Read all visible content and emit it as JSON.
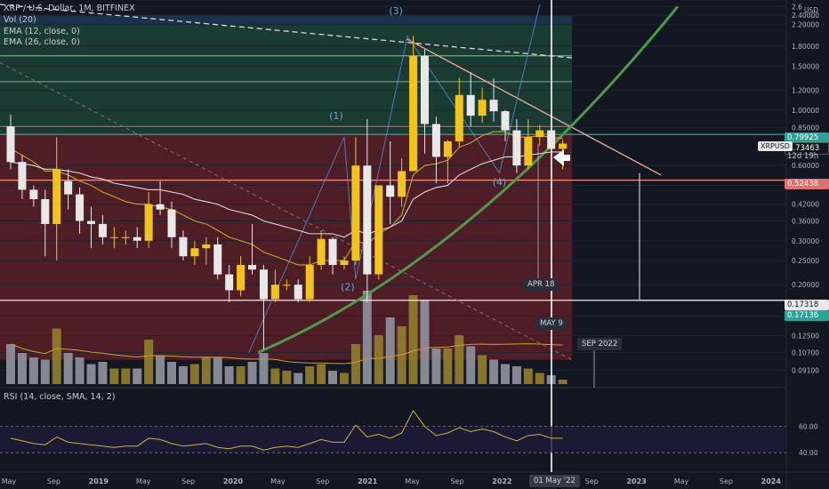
{
  "header": {
    "symbol_line": "XRP / U.S. Dollar, 1M, BITFINEX",
    "indicator_vol": "Vol (20)",
    "indicator_ema12": "EMA (12, close, 0)",
    "indicator_ema26": "EMA (26, close, 0)"
  },
  "rsi_panel": {
    "label": "RSI (14, close, SMA, 14, 2)",
    "levels": [
      "60.00",
      "40.00"
    ]
  },
  "price_axis": {
    "currency": "USD",
    "ticks": [
      "2.6",
      "2.40000",
      "2.20000",
      "1.80000",
      "1.50000",
      "1.20000",
      "1.00000",
      "0.85000",
      "0.60000",
      "0.50000",
      "0.42000",
      "0.36000",
      "0.30000",
      "0.25000",
      "0.20000",
      "0.15000",
      "0.12500",
      "0.10700",
      "0.09100"
    ]
  },
  "price_tags": {
    "symbol": "XRPUSD",
    "current_price": "0.73463",
    "countdown": "12d 19h",
    "level_green": "0.79925",
    "level_red": "0.52438",
    "level_white": "0.17318",
    "level_low": "0.17136"
  },
  "wave_labels": [
    "(1)",
    "(2)",
    "(3)",
    "(4)"
  ],
  "time_markers": {
    "apr": "APR 18",
    "may": "MAY 9",
    "sep": "SEP 2022",
    "cursor": "01 May '22"
  },
  "time_axis": [
    "May",
    "Sep",
    "2019",
    "May",
    "Sep",
    "2020",
    "May",
    "Sep",
    "2021",
    "May",
    "Sep",
    "2022",
    "May",
    "Sep",
    "2023",
    "May",
    "Sep",
    "2024"
  ],
  "colors": {
    "background": "#131722",
    "bull_candle": "#f0c419",
    "bear_candle": "#e8e8e8",
    "ema_fast": "#c9a227",
    "ema_slow": "#d8d8d8",
    "curve": "#4c9a4c",
    "resistance_line": "#f4a9a0",
    "red_zone": "#5a1f26",
    "green_zone": "#1f4a3a"
  },
  "chart_data": {
    "type": "candlestick",
    "title": "XRP / U.S. Dollar, 1M, BITFINEX",
    "x_start": "2018-05",
    "periods": [
      "2018-05",
      "2018-06",
      "2018-07",
      "2018-08",
      "2018-09",
      "2018-10",
      "2018-11",
      "2018-12",
      "2019-01",
      "2019-02",
      "2019-03",
      "2019-04",
      "2019-05",
      "2019-06",
      "2019-07",
      "2019-08",
      "2019-09",
      "2019-10",
      "2019-11",
      "2019-12",
      "2020-01",
      "2020-02",
      "2020-03",
      "2020-04",
      "2020-05",
      "2020-06",
      "2020-07",
      "2020-08",
      "2020-09",
      "2020-10",
      "2020-11",
      "2020-12",
      "2021-01",
      "2021-02",
      "2021-03",
      "2021-04",
      "2021-05",
      "2021-06",
      "2021-07",
      "2021-08",
      "2021-09",
      "2021-10",
      "2021-11",
      "2021-12",
      "2022-01",
      "2022-02",
      "2022-03",
      "2022-04",
      "2022-05"
    ],
    "open": [
      0.86,
      0.62,
      0.48,
      0.44,
      0.35,
      0.52,
      0.46,
      0.36,
      0.35,
      0.31,
      0.31,
      0.31,
      0.3,
      0.42,
      0.4,
      0.31,
      0.26,
      0.28,
      0.29,
      0.22,
      0.19,
      0.24,
      0.23,
      0.175,
      0.2,
      0.2,
      0.175,
      0.24,
      0.305,
      0.24,
      0.25,
      0.6,
      0.22,
      0.5,
      0.45,
      0.57,
      1.65,
      0.88,
      0.65,
      0.75,
      1.15,
      0.95,
      1.1,
      0.99,
      0.83,
      0.6,
      0.78,
      0.83,
      0.7
    ],
    "high": [
      0.96,
      0.66,
      0.5,
      0.48,
      0.78,
      0.58,
      0.49,
      0.41,
      0.38,
      0.34,
      0.33,
      0.34,
      0.47,
      0.52,
      0.43,
      0.33,
      0.3,
      0.31,
      0.31,
      0.24,
      0.26,
      0.35,
      0.24,
      0.23,
      0.21,
      0.21,
      0.26,
      0.33,
      0.31,
      0.26,
      0.78,
      0.92,
      0.49,
      0.75,
      0.64,
      1.98,
      1.75,
      0.94,
      0.76,
      1.35,
      1.42,
      1.23,
      1.34,
      1.0,
      0.92,
      0.92,
      0.87,
      0.85,
      0.76
    ],
    "low": [
      0.58,
      0.44,
      0.41,
      0.26,
      0.25,
      0.4,
      0.32,
      0.28,
      0.29,
      0.28,
      0.29,
      0.28,
      0.28,
      0.38,
      0.28,
      0.25,
      0.24,
      0.24,
      0.21,
      0.17,
      0.18,
      0.22,
      0.11,
      0.17,
      0.19,
      0.17,
      0.17,
      0.23,
      0.22,
      0.23,
      0.24,
      0.17,
      0.21,
      0.35,
      0.41,
      0.57,
      0.67,
      0.51,
      0.51,
      0.71,
      0.86,
      0.89,
      0.9,
      0.75,
      0.56,
      0.58,
      0.72,
      0.6,
      0.58
    ],
    "close": [
      0.62,
      0.48,
      0.44,
      0.35,
      0.58,
      0.46,
      0.36,
      0.35,
      0.31,
      0.31,
      0.31,
      0.3,
      0.42,
      0.4,
      0.31,
      0.26,
      0.28,
      0.29,
      0.22,
      0.19,
      0.24,
      0.23,
      0.175,
      0.2,
      0.2,
      0.175,
      0.24,
      0.305,
      0.24,
      0.25,
      0.6,
      0.22,
      0.5,
      0.45,
      0.57,
      1.65,
      0.88,
      0.65,
      0.75,
      1.15,
      0.95,
      1.1,
      0.99,
      0.83,
      0.6,
      0.78,
      0.83,
      0.7,
      0.73463
    ],
    "volume": [
      18,
      14,
      12,
      11,
      25,
      14,
      12,
      9,
      10,
      7,
      7,
      7,
      20,
      13,
      10,
      8,
      9,
      12,
      12,
      8,
      8,
      10,
      14,
      7,
      6,
      5,
      8,
      9,
      6,
      5,
      18,
      42,
      22,
      30,
      26,
      40,
      38,
      16,
      16,
      22,
      17,
      13,
      11,
      9,
      8,
      7,
      5,
      4,
      2
    ],
    "ema12": [
      0.7,
      0.66,
      0.62,
      0.57,
      0.57,
      0.55,
      0.52,
      0.5,
      0.47,
      0.45,
      0.43,
      0.42,
      0.42,
      0.41,
      0.4,
      0.38,
      0.36,
      0.35,
      0.33,
      0.31,
      0.3,
      0.29,
      0.27,
      0.26,
      0.25,
      0.24,
      0.24,
      0.25,
      0.25,
      0.25,
      0.3,
      0.29,
      0.32,
      0.34,
      0.38,
      0.55,
      0.6,
      0.61,
      0.63,
      0.71,
      0.74,
      0.79,
      0.82,
      0.82,
      0.78,
      0.78,
      0.79,
      0.78,
      0.77
    ],
    "ema26": [
      0.62,
      0.61,
      0.6,
      0.58,
      0.58,
      0.57,
      0.56,
      0.54,
      0.53,
      0.51,
      0.5,
      0.49,
      0.48,
      0.48,
      0.47,
      0.46,
      0.44,
      0.43,
      0.42,
      0.4,
      0.39,
      0.38,
      0.36,
      0.35,
      0.34,
      0.33,
      0.32,
      0.32,
      0.32,
      0.31,
      0.33,
      0.32,
      0.33,
      0.34,
      0.36,
      0.44,
      0.47,
      0.49,
      0.5,
      0.55,
      0.58,
      0.61,
      0.63,
      0.65,
      0.65,
      0.66,
      0.67,
      0.68,
      0.68
    ],
    "rsi": [
      51,
      49,
      47,
      46,
      52,
      48,
      47,
      46,
      45,
      44,
      45,
      45,
      51,
      50,
      47,
      45,
      46,
      47,
      44,
      43,
      45,
      45,
      42,
      44,
      45,
      44,
      47,
      50,
      48,
      48,
      61,
      52,
      54,
      51,
      55,
      72,
      60,
      53,
      55,
      59,
      56,
      58,
      56,
      52,
      49,
      53,
      54,
      51,
      51
    ],
    "levels": {
      "green": 0.79925,
      "red": 0.52438,
      "white": 0.17318,
      "low": 0.17136
    },
    "rsi_levels": [
      60,
      40
    ],
    "y_scale": "log",
    "ylim": [
      0.08,
      2.65
    ]
  }
}
